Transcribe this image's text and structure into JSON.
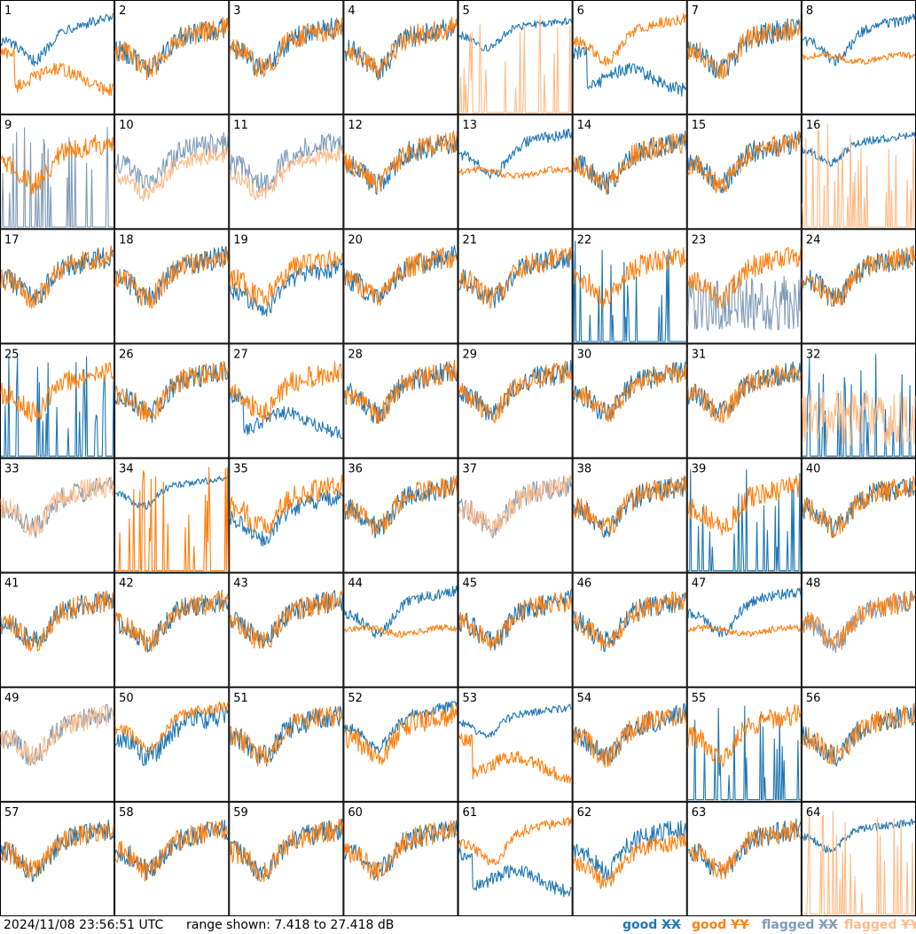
{
  "footer": {
    "timestamp": "2024/11/08 23:56:51 UTC",
    "range_text": "range shown: 7.418 to 27.418 dB"
  },
  "legend": {
    "good_xx": {
      "prefix": "good ",
      "pol": "XX",
      "color": "#1f77b4"
    },
    "good_yy": {
      "prefix": "good ",
      "pol": "YY",
      "color": "#ff7f0e"
    },
    "flagged_xx": {
      "prefix": "flagged ",
      "pol": "XX",
      "color": "#7f9bb8"
    },
    "flagged_yy": {
      "prefix": "flagged ",
      "pol": "YY",
      "color": "#ffbb88"
    }
  },
  "chart_data": {
    "type": "line",
    "grid": "8x8 small multiples",
    "ylim": [
      7.418,
      27.418
    ],
    "unit": "dB",
    "panels": [
      {
        "id": 1,
        "xx": {
          "status": "good",
          "shape": "normal_high"
        },
        "yy": {
          "status": "good",
          "shape": "deep_dip_left"
        }
      },
      {
        "id": 2,
        "xx": {
          "status": "good",
          "shape": "normal"
        },
        "yy": {
          "status": "good",
          "shape": "normal"
        }
      },
      {
        "id": 3,
        "xx": {
          "status": "good",
          "shape": "normal"
        },
        "yy": {
          "status": "good",
          "shape": "normal"
        }
      },
      {
        "id": 4,
        "xx": {
          "status": "good",
          "shape": "normal"
        },
        "yy": {
          "status": "good",
          "shape": "normal"
        }
      },
      {
        "id": 5,
        "xx": {
          "status": "good",
          "shape": "high_smooth"
        },
        "yy": {
          "status": "flagged",
          "shape": "spikes"
        }
      },
      {
        "id": 6,
        "xx": {
          "status": "good",
          "shape": "deep_dip_left"
        },
        "yy": {
          "status": "good",
          "shape": "normal_high"
        }
      },
      {
        "id": 7,
        "xx": {
          "status": "good",
          "shape": "normal"
        },
        "yy": {
          "status": "good",
          "shape": "normal"
        }
      },
      {
        "id": 8,
        "xx": {
          "status": "good",
          "shape": "normal_high"
        },
        "yy": {
          "status": "good",
          "shape": "flat"
        }
      },
      {
        "id": 9,
        "xx": {
          "status": "flagged",
          "shape": "spikes"
        },
        "yy": {
          "status": "good",
          "shape": "normal"
        }
      },
      {
        "id": 10,
        "xx": {
          "status": "flagged",
          "shape": "normal"
        },
        "yy": {
          "status": "flagged",
          "shape": "normal_low"
        }
      },
      {
        "id": 11,
        "xx": {
          "status": "flagged",
          "shape": "normal"
        },
        "yy": {
          "status": "flagged",
          "shape": "normal_low"
        }
      },
      {
        "id": 12,
        "xx": {
          "status": "good",
          "shape": "normal"
        },
        "yy": {
          "status": "good",
          "shape": "normal"
        }
      },
      {
        "id": 13,
        "xx": {
          "status": "good",
          "shape": "normal_high"
        },
        "yy": {
          "status": "good",
          "shape": "flat"
        }
      },
      {
        "id": 14,
        "xx": {
          "status": "good",
          "shape": "normal"
        },
        "yy": {
          "status": "good",
          "shape": "normal"
        }
      },
      {
        "id": 15,
        "xx": {
          "status": "good",
          "shape": "normal"
        },
        "yy": {
          "status": "good",
          "shape": "normal"
        }
      },
      {
        "id": 16,
        "xx": {
          "status": "good",
          "shape": "high_smooth"
        },
        "yy": {
          "status": "flagged",
          "shape": "spikes"
        }
      },
      {
        "id": 17,
        "xx": {
          "status": "good",
          "shape": "normal"
        },
        "yy": {
          "status": "good",
          "shape": "normal"
        }
      },
      {
        "id": 18,
        "xx": {
          "status": "good",
          "shape": "normal"
        },
        "yy": {
          "status": "good",
          "shape": "normal"
        }
      },
      {
        "id": 19,
        "xx": {
          "status": "good",
          "shape": "normal_low"
        },
        "yy": {
          "status": "good",
          "shape": "normal"
        }
      },
      {
        "id": 20,
        "xx": {
          "status": "good",
          "shape": "normal"
        },
        "yy": {
          "status": "good",
          "shape": "normal"
        }
      },
      {
        "id": 21,
        "xx": {
          "status": "good",
          "shape": "normal"
        },
        "yy": {
          "status": "good",
          "shape": "normal"
        }
      },
      {
        "id": 22,
        "xx": {
          "status": "good",
          "shape": "spikes"
        },
        "yy": {
          "status": "good",
          "shape": "normal"
        }
      },
      {
        "id": 23,
        "xx": {
          "status": "flagged",
          "shape": "noisy_low"
        },
        "yy": {
          "status": "good",
          "shape": "normal"
        }
      },
      {
        "id": 24,
        "xx": {
          "status": "good",
          "shape": "normal"
        },
        "yy": {
          "status": "good",
          "shape": "normal"
        }
      },
      {
        "id": 25,
        "xx": {
          "status": "good",
          "shape": "spikes"
        },
        "yy": {
          "status": "good",
          "shape": "normal"
        }
      },
      {
        "id": 26,
        "xx": {
          "status": "good",
          "shape": "normal"
        },
        "yy": {
          "status": "good",
          "shape": "normal"
        }
      },
      {
        "id": 27,
        "xx": {
          "status": "good",
          "shape": "deep_dip_left"
        },
        "yy": {
          "status": "good",
          "shape": "normal"
        }
      },
      {
        "id": 28,
        "xx": {
          "status": "good",
          "shape": "normal"
        },
        "yy": {
          "status": "good",
          "shape": "normal"
        }
      },
      {
        "id": 29,
        "xx": {
          "status": "good",
          "shape": "normal"
        },
        "yy": {
          "status": "good",
          "shape": "normal"
        }
      },
      {
        "id": 30,
        "xx": {
          "status": "good",
          "shape": "normal"
        },
        "yy": {
          "status": "good",
          "shape": "normal"
        }
      },
      {
        "id": 31,
        "xx": {
          "status": "good",
          "shape": "normal"
        },
        "yy": {
          "status": "good",
          "shape": "normal"
        }
      },
      {
        "id": 32,
        "xx": {
          "status": "good",
          "shape": "spikes"
        },
        "yy": {
          "status": "flagged",
          "shape": "noisy_low"
        }
      },
      {
        "id": 33,
        "xx": {
          "status": "flagged",
          "shape": "normal"
        },
        "yy": {
          "status": "flagged",
          "shape": "normal"
        }
      },
      {
        "id": 34,
        "xx": {
          "status": "good",
          "shape": "high_smooth"
        },
        "yy": {
          "status": "good",
          "shape": "spikes"
        }
      },
      {
        "id": 35,
        "xx": {
          "status": "good",
          "shape": "normal_low"
        },
        "yy": {
          "status": "good",
          "shape": "normal"
        }
      },
      {
        "id": 36,
        "xx": {
          "status": "good",
          "shape": "normal"
        },
        "yy": {
          "status": "good",
          "shape": "normal"
        }
      },
      {
        "id": 37,
        "xx": {
          "status": "flagged",
          "shape": "normal"
        },
        "yy": {
          "status": "flagged",
          "shape": "normal"
        }
      },
      {
        "id": 38,
        "xx": {
          "status": "good",
          "shape": "normal"
        },
        "yy": {
          "status": "good",
          "shape": "normal"
        }
      },
      {
        "id": 39,
        "xx": {
          "status": "good",
          "shape": "spikes"
        },
        "yy": {
          "status": "good",
          "shape": "normal"
        }
      },
      {
        "id": 40,
        "xx": {
          "status": "good",
          "shape": "normal"
        },
        "yy": {
          "status": "good",
          "shape": "normal"
        }
      },
      {
        "id": 41,
        "xx": {
          "status": "good",
          "shape": "normal"
        },
        "yy": {
          "status": "good",
          "shape": "normal"
        }
      },
      {
        "id": 42,
        "xx": {
          "status": "good",
          "shape": "normal"
        },
        "yy": {
          "status": "good",
          "shape": "normal"
        }
      },
      {
        "id": 43,
        "xx": {
          "status": "good",
          "shape": "normal"
        },
        "yy": {
          "status": "good",
          "shape": "normal"
        }
      },
      {
        "id": 44,
        "xx": {
          "status": "good",
          "shape": "normal_high"
        },
        "yy": {
          "status": "good",
          "shape": "flat"
        }
      },
      {
        "id": 45,
        "xx": {
          "status": "good",
          "shape": "normal"
        },
        "yy": {
          "status": "good",
          "shape": "normal"
        }
      },
      {
        "id": 46,
        "xx": {
          "status": "good",
          "shape": "normal"
        },
        "yy": {
          "status": "good",
          "shape": "normal"
        }
      },
      {
        "id": 47,
        "xx": {
          "status": "good",
          "shape": "normal_high"
        },
        "yy": {
          "status": "good",
          "shape": "flat"
        }
      },
      {
        "id": 48,
        "xx": {
          "status": "flagged",
          "shape": "normal"
        },
        "yy": {
          "status": "good",
          "shape": "normal"
        }
      },
      {
        "id": 49,
        "xx": {
          "status": "flagged",
          "shape": "normal"
        },
        "yy": {
          "status": "flagged",
          "shape": "normal"
        }
      },
      {
        "id": 50,
        "xx": {
          "status": "good",
          "shape": "normal"
        },
        "yy": {
          "status": "good",
          "shape": "normal_high"
        }
      },
      {
        "id": 51,
        "xx": {
          "status": "good",
          "shape": "normal"
        },
        "yy": {
          "status": "good",
          "shape": "normal"
        }
      },
      {
        "id": 52,
        "xx": {
          "status": "good",
          "shape": "normal_high"
        },
        "yy": {
          "status": "good",
          "shape": "normal"
        }
      },
      {
        "id": 53,
        "xx": {
          "status": "good",
          "shape": "high_smooth"
        },
        "yy": {
          "status": "good",
          "shape": "deep_dip_left"
        }
      },
      {
        "id": 54,
        "xx": {
          "status": "good",
          "shape": "normal"
        },
        "yy": {
          "status": "good",
          "shape": "normal"
        }
      },
      {
        "id": 55,
        "xx": {
          "status": "good",
          "shape": "spikes"
        },
        "yy": {
          "status": "good",
          "shape": "normal"
        }
      },
      {
        "id": 56,
        "xx": {
          "status": "good",
          "shape": "normal"
        },
        "yy": {
          "status": "good",
          "shape": "normal"
        }
      },
      {
        "id": 57,
        "xx": {
          "status": "good",
          "shape": "normal"
        },
        "yy": {
          "status": "good",
          "shape": "normal"
        }
      },
      {
        "id": 58,
        "xx": {
          "status": "good",
          "shape": "normal"
        },
        "yy": {
          "status": "good",
          "shape": "normal"
        }
      },
      {
        "id": 59,
        "xx": {
          "status": "good",
          "shape": "normal"
        },
        "yy": {
          "status": "good",
          "shape": "normal"
        }
      },
      {
        "id": 60,
        "xx": {
          "status": "good",
          "shape": "normal"
        },
        "yy": {
          "status": "good",
          "shape": "normal"
        }
      },
      {
        "id": 61,
        "xx": {
          "status": "good",
          "shape": "deep_dip_left"
        },
        "yy": {
          "status": "good",
          "shape": "normal_high"
        }
      },
      {
        "id": 62,
        "xx": {
          "status": "good",
          "shape": "normal"
        },
        "yy": {
          "status": "good",
          "shape": "normal_low"
        }
      },
      {
        "id": 63,
        "xx": {
          "status": "good",
          "shape": "normal"
        },
        "yy": {
          "status": "good",
          "shape": "normal"
        }
      },
      {
        "id": 64,
        "xx": {
          "status": "good",
          "shape": "high_smooth"
        },
        "yy": {
          "status": "flagged",
          "shape": "spikes"
        }
      }
    ]
  }
}
